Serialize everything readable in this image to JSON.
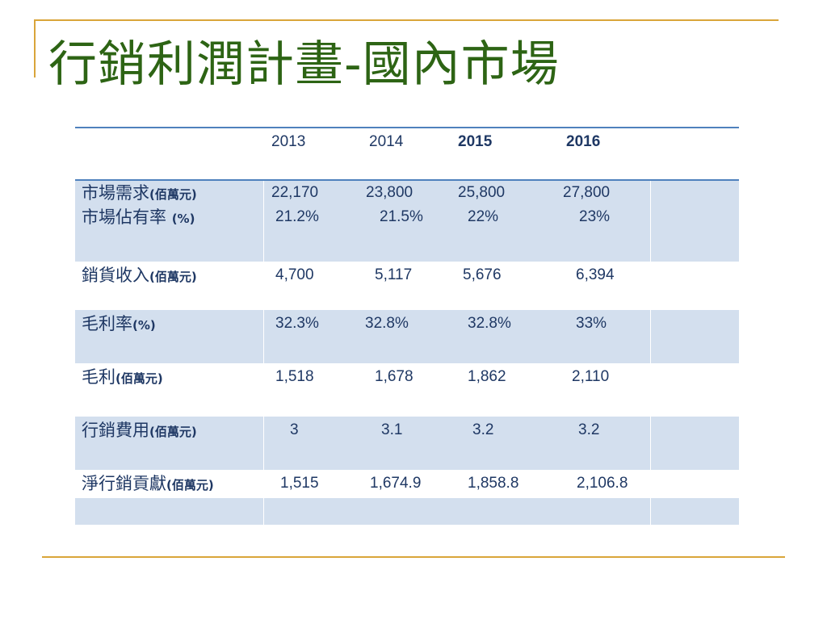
{
  "slide": {
    "title": "行銷利潤計畫-國內市場"
  },
  "table": {
    "years": [
      "2013",
      "2014",
      "2015",
      "2016"
    ],
    "rows": [
      {
        "label": "市場需求",
        "unit": "(佰萬元)",
        "values": [
          "22,170",
          "23,800",
          "25,800",
          "27,800"
        ]
      },
      {
        "label": "市場佔有率",
        "unit": "(%)",
        "values": [
          "21.2%",
          "21.5%",
          "22%",
          "23%"
        ]
      },
      {
        "label": "銷貨收入",
        "unit": "(佰萬元)",
        "values": [
          "4,700",
          "5,117",
          "5,676",
          "6,394"
        ]
      },
      {
        "label": "毛利率",
        "unit": "(%)",
        "values": [
          "32.3%",
          "32.8%",
          "32.8%",
          "33%"
        ]
      },
      {
        "label": "毛利",
        "unit": "(佰萬元)",
        "values": [
          "1,518",
          "1,678",
          "1,862",
          "2,110"
        ]
      },
      {
        "label": "行銷費用",
        "unit": "(佰萬元)",
        "values": [
          "3",
          "3.1",
          "3.2",
          "3.2"
        ]
      },
      {
        "label": "淨行銷貢獻",
        "unit": "(佰萬元)",
        "values": [
          "1,515",
          "1,674.9",
          "1,858.8",
          "2,106.8"
        ]
      }
    ]
  }
}
